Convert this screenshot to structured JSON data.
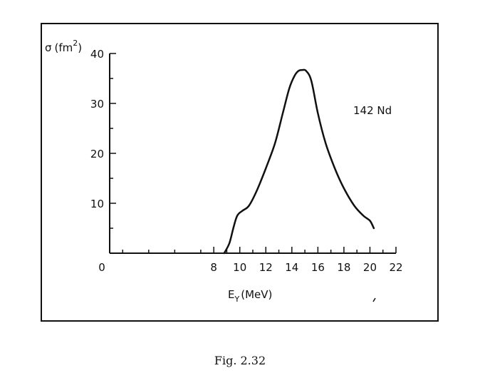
{
  "chart_data": {
    "type": "line",
    "title": "",
    "annotation": "142 Nd",
    "ylabel": {
      "sigma": "σ",
      "unit_open": "(fm",
      "unit_exp": "2",
      "unit_close": ")"
    },
    "xlabel": {
      "base": "E",
      "sub": "Y",
      "unit": "(MeV)"
    },
    "xlim": [
      0,
      22
    ],
    "ylim": [
      0,
      40
    ],
    "x_ticks": [
      {
        "value": 0,
        "label": "0"
      },
      {
        "value": 8,
        "label": "8"
      },
      {
        "value": 10,
        "label": "10"
      },
      {
        "value": 12,
        "label": "12"
      },
      {
        "value": 14,
        "label": "14"
      },
      {
        "value": 16,
        "label": "16"
      },
      {
        "value": 18,
        "label": "18"
      },
      {
        "value": 20,
        "label": "20"
      },
      {
        "value": 22,
        "label": "22"
      }
    ],
    "y_ticks": [
      {
        "value": 10,
        "label": "10"
      },
      {
        "value": 20,
        "label": "20"
      },
      {
        "value": 30,
        "label": "30"
      },
      {
        "value": 40,
        "label": "40"
      }
    ],
    "series": [
      {
        "name": "142 Nd",
        "x": [
          8.8,
          9.2,
          9.5,
          9.8,
          10.2,
          10.7,
          11.3,
          12.0,
          12.7,
          13.3,
          13.8,
          14.2,
          14.5,
          14.8,
          15.1,
          15.5,
          16.0,
          16.6,
          17.3,
          18.0,
          18.8,
          19.5,
          20.0,
          20.3
        ],
        "y": [
          0,
          2,
          5,
          7.5,
          8.5,
          9.5,
          12.5,
          17,
          22,
          28,
          33,
          35.5,
          36.5,
          36.7,
          36.5,
          34.5,
          28,
          22,
          17,
          13,
          9.5,
          7.5,
          6.5,
          5
        ]
      }
    ]
  },
  "caption": "Fig. 2.32",
  "colors": {
    "ink": "#111111",
    "background": "#ffffff"
  }
}
